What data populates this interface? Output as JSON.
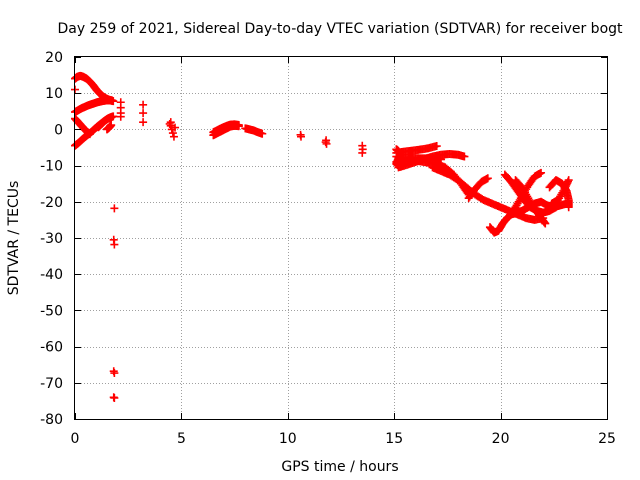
{
  "chart_data": {
    "type": "scatter",
    "title": "Day 259 of 2021, Sidereal Day-to-day VTEC variation (SDTVAR) for receiver bogt",
    "xlabel": "GPS time / hours",
    "ylabel": "SDTVAR / TECUs",
    "xlim": [
      0,
      25
    ],
    "ylim": [
      -80,
      20
    ],
    "xticks": [
      0,
      5,
      10,
      15,
      20,
      25
    ],
    "yticks": [
      20,
      10,
      0,
      -10,
      -20,
      -30,
      -40,
      -50,
      -60,
      -70,
      -80
    ],
    "xtick_labels": [
      "0",
      "5",
      "10",
      "15",
      "20",
      "25"
    ],
    "ytick_labels": [
      "20",
      "10",
      "0",
      "-10",
      "-20",
      "-30",
      "-40",
      "-50",
      "-60",
      "-70",
      "-80"
    ],
    "grid": true,
    "marker": "+",
    "color": "#ff0000",
    "series": [
      {
        "name": "SDTVAR",
        "segments": [
          [
            [
              0.0,
              14.0
            ],
            [
              0.1,
              14.5
            ],
            [
              0.25,
              14.8
            ],
            [
              0.4,
              14.5
            ],
            [
              0.55,
              14.0
            ],
            [
              0.7,
              13.2
            ],
            [
              0.85,
              12.2
            ],
            [
              1.0,
              11.0
            ],
            [
              1.15,
              10.0
            ],
            [
              1.3,
              9.2
            ],
            [
              1.45,
              8.6
            ],
            [
              1.6,
              8.2
            ],
            [
              1.75,
              8.0
            ]
          ],
          [
            [
              0.0,
              4.8
            ],
            [
              0.15,
              5.3
            ],
            [
              0.3,
              5.8
            ],
            [
              0.45,
              6.2
            ],
            [
              0.6,
              6.6
            ],
            [
              0.75,
              6.9
            ],
            [
              0.9,
              7.2
            ],
            [
              1.05,
              7.5
            ],
            [
              1.2,
              7.7
            ],
            [
              1.35,
              7.9
            ],
            [
              1.5,
              8.0
            ],
            [
              1.65,
              8.0
            ],
            [
              1.8,
              7.8
            ]
          ],
          [
            [
              0.0,
              3.0
            ],
            [
              0.15,
              2.0
            ],
            [
              0.3,
              1.0
            ],
            [
              0.45,
              0.0
            ],
            [
              0.6,
              -0.8
            ],
            [
              0.7,
              -1.3
            ]
          ],
          [
            [
              0.0,
              -4.5
            ],
            [
              0.15,
              -3.8
            ],
            [
              0.3,
              -3.0
            ],
            [
              0.45,
              -2.2
            ],
            [
              0.6,
              -1.5
            ],
            [
              0.75,
              -0.8
            ],
            [
              0.9,
              0.0
            ],
            [
              1.05,
              0.8
            ],
            [
              1.2,
              1.5
            ],
            [
              1.35,
              2.2
            ],
            [
              1.5,
              2.8
            ],
            [
              1.65,
              3.3
            ],
            [
              1.8,
              3.6
            ]
          ],
          [
            [
              1.1,
              0.6
            ],
            [
              1.25,
              1.5
            ],
            [
              1.4,
              2.4
            ],
            [
              1.55,
              3.0
            ],
            [
              1.7,
              3.3
            ]
          ],
          [
            [
              1.5,
              0.0
            ],
            [
              1.6,
              0.5
            ],
            [
              1.7,
              1.2
            ]
          ]
        ],
        "points": [
          [
            0.0,
            11.0
          ],
          [
            1.85,
            -21.8
          ],
          [
            1.82,
            -30.5
          ],
          [
            1.85,
            -31.8
          ],
          [
            1.82,
            -66.8
          ],
          [
            1.85,
            -67.3
          ],
          [
            1.82,
            -74.0
          ],
          [
            1.85,
            -74.2
          ],
          [
            2.15,
            7.5
          ],
          [
            2.15,
            6.0
          ],
          [
            2.15,
            4.5
          ],
          [
            2.15,
            3.5
          ],
          [
            3.2,
            6.8
          ],
          [
            3.2,
            4.5
          ],
          [
            3.2,
            2.0
          ],
          [
            4.5,
            2.0
          ],
          [
            4.5,
            1.0
          ],
          [
            4.55,
            0.0
          ],
          [
            4.6,
            -1.0
          ],
          [
            4.65,
            -2.0
          ],
          [
            4.45,
            1.5
          ],
          [
            4.7,
            0.5
          ],
          [
            10.6,
            -1.5
          ],
          [
            10.62,
            -2.0
          ],
          [
            11.8,
            -3.0
          ],
          [
            11.82,
            -4.0
          ],
          [
            11.78,
            -3.5
          ],
          [
            13.5,
            -4.5
          ],
          [
            13.52,
            -5.5
          ],
          [
            13.5,
            -6.5
          ]
        ],
        "segments2": [
          [
            [
              6.5,
              -0.8
            ],
            [
              6.7,
              -0.2
            ],
            [
              6.9,
              0.4
            ],
            [
              7.1,
              0.9
            ],
            [
              7.3,
              1.3
            ],
            [
              7.5,
              1.4
            ],
            [
              7.7,
              1.2
            ]
          ],
          [
            [
              6.5,
              -1.6
            ],
            [
              6.7,
              -1.0
            ],
            [
              6.9,
              -0.4
            ],
            [
              7.1,
              0.2
            ],
            [
              7.3,
              0.8
            ],
            [
              7.5,
              1.0
            ],
            [
              7.7,
              0.9
            ]
          ],
          [
            [
              8.0,
              0.3
            ],
            [
              8.2,
              0.0
            ],
            [
              8.4,
              -0.3
            ],
            [
              8.6,
              -0.8
            ],
            [
              8.8,
              -1.2
            ]
          ],
          [
            [
              15.1,
              -6.5
            ],
            [
              15.4,
              -6.2
            ],
            [
              15.8,
              -5.9
            ],
            [
              16.2,
              -5.6
            ],
            [
              16.6,
              -5.2
            ],
            [
              17.0,
              -4.6
            ]
          ],
          [
            [
              15.1,
              -7.5
            ],
            [
              15.4,
              -7.8
            ],
            [
              15.8,
              -7.9
            ],
            [
              16.2,
              -8.0
            ],
            [
              16.6,
              -8.0
            ],
            [
              17.0,
              -8.0
            ],
            [
              17.2,
              -8.3
            ]
          ],
          [
            [
              15.1,
              -9.0
            ],
            [
              15.4,
              -8.6
            ],
            [
              15.8,
              -8.5
            ],
            [
              16.2,
              -8.8
            ],
            [
              16.6,
              -9.2
            ],
            [
              17.0,
              -9.5
            ],
            [
              17.4,
              -10.5
            ],
            [
              17.8,
              -12.5
            ],
            [
              18.2,
              -15.5
            ],
            [
              18.5,
              -18.0
            ]
          ],
          [
            [
              15.2,
              -10.5
            ],
            [
              15.6,
              -9.8
            ],
            [
              16.0,
              -9.0
            ],
            [
              16.4,
              -8.2
            ],
            [
              16.8,
              -7.5
            ],
            [
              17.2,
              -7.0
            ],
            [
              17.6,
              -6.8
            ],
            [
              18.0,
              -7.0
            ],
            [
              18.3,
              -7.5
            ]
          ],
          [
            [
              16.8,
              -10.5
            ],
            [
              17.2,
              -11.5
            ],
            [
              17.6,
              -12.5
            ],
            [
              18.0,
              -14.0
            ],
            [
              18.4,
              -16.0
            ],
            [
              18.8,
              -18.0
            ],
            [
              19.2,
              -19.5
            ],
            [
              19.6,
              -20.5
            ],
            [
              20.0,
              -21.5
            ],
            [
              20.4,
              -22.5
            ],
            [
              20.8,
              -23.5
            ],
            [
              21.2,
              -24.5
            ],
            [
              21.6,
              -25.0
            ],
            [
              22.0,
              -24.5
            ]
          ],
          [
            [
              18.5,
              -19.0
            ],
            [
              18.8,
              -16.5
            ],
            [
              19.1,
              -14.5
            ],
            [
              19.4,
              -13.5
            ]
          ],
          [
            [
              19.5,
              -27.0
            ],
            [
              19.7,
              -28.5
            ],
            [
              19.9,
              -28.0
            ],
            [
              20.1,
              -26.0
            ],
            [
              20.3,
              -24.5
            ],
            [
              20.5,
              -23.5
            ],
            [
              20.8,
              -23.0
            ],
            [
              21.0,
              -22.5
            ],
            [
              21.3,
              -21.5
            ],
            [
              21.6,
              -20.5
            ],
            [
              21.9,
              -20.0
            ],
            [
              22.2,
              -21.0
            ],
            [
              22.5,
              -21.5
            ],
            [
              22.8,
              -21.0
            ],
            [
              23.1,
              -20.5
            ]
          ],
          [
            [
              20.2,
              -12.5
            ],
            [
              20.5,
              -14.5
            ],
            [
              20.8,
              -17.0
            ],
            [
              21.1,
              -19.5
            ],
            [
              21.4,
              -21.5
            ],
            [
              21.7,
              -22.5
            ],
            [
              22.0,
              -23.0
            ],
            [
              22.3,
              -22.5
            ],
            [
              22.6,
              -21.5
            ]
          ],
          [
            [
              20.4,
              -24.0
            ],
            [
              20.7,
              -21.5
            ],
            [
              21.0,
              -18.5
            ],
            [
              21.3,
              -15.5
            ],
            [
              21.6,
              -13.0
            ],
            [
              21.9,
              -12.0
            ]
          ],
          [
            [
              20.7,
              -14.0
            ],
            [
              21.0,
              -16.0
            ],
            [
              21.3,
              -19.0
            ],
            [
              21.6,
              -22.0
            ],
            [
              21.9,
              -24.5
            ],
            [
              22.1,
              -26.0
            ]
          ],
          [
            [
              22.3,
              -16.0
            ],
            [
              22.6,
              -14.0
            ],
            [
              22.9,
              -15.0
            ],
            [
              23.1,
              -17.0
            ],
            [
              23.2,
              -19.5
            ],
            [
              23.2,
              -21.5
            ]
          ],
          [
            [
              22.4,
              -20.5
            ],
            [
              22.7,
              -19.5
            ],
            [
              23.0,
              -16.5
            ],
            [
              23.2,
              -14.0
            ]
          ],
          [
            [
              15.1,
              -5.5
            ],
            [
              15.2,
              -6.0
            ],
            [
              15.3,
              -7.0
            ],
            [
              15.2,
              -8.0
            ],
            [
              15.1,
              -9.5
            ],
            [
              15.2,
              -10.0
            ]
          ]
        ]
      }
    ]
  }
}
